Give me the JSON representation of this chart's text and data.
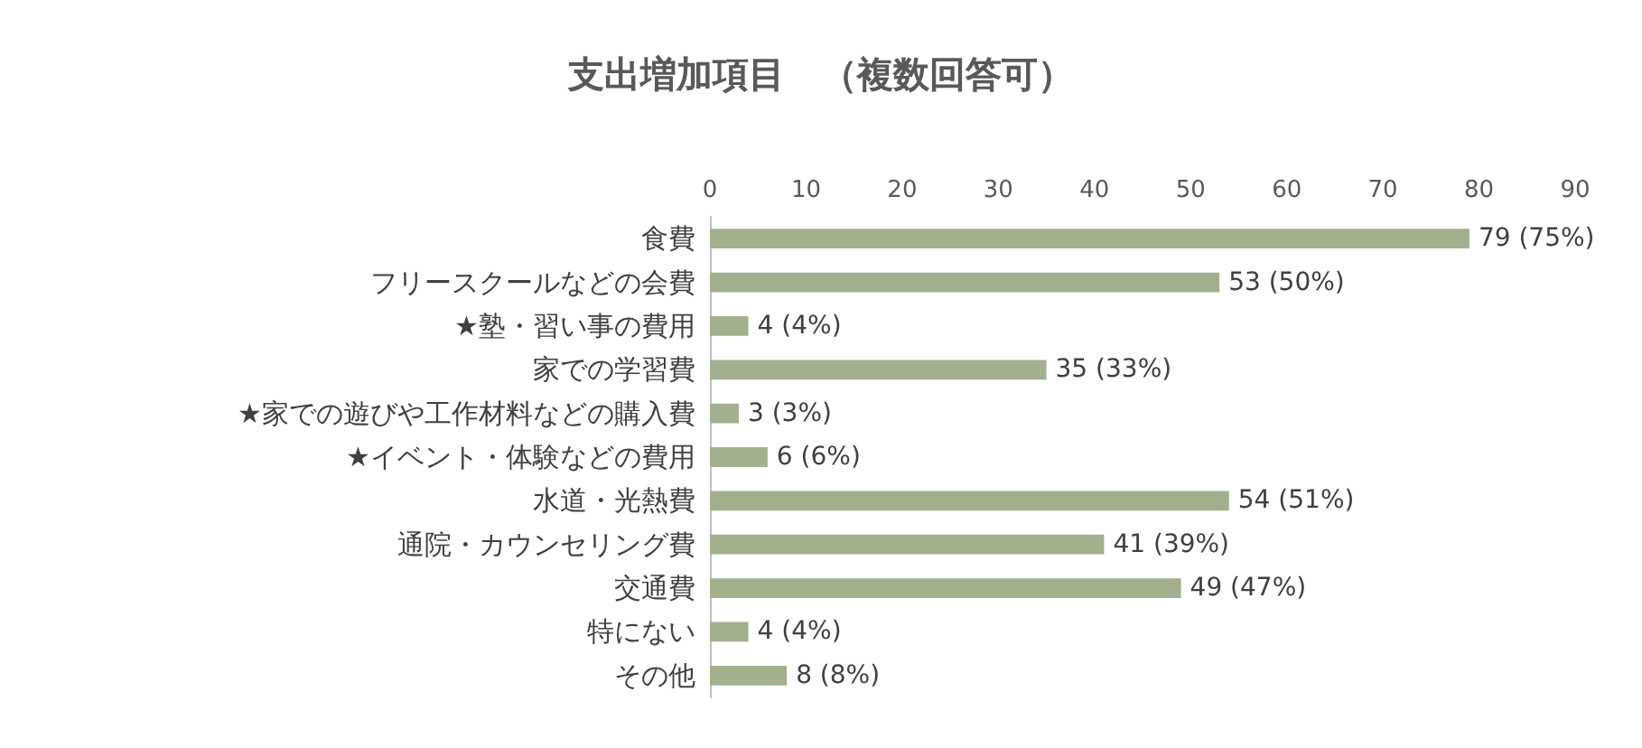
{
  "chart_data": {
    "type": "bar",
    "orientation": "horizontal",
    "title": "支出増加項目　（複数回答可）",
    "categories": [
      "食費",
      "フリースクールなどの会費",
      "★塾・習い事の費用",
      "家での学習費",
      "★家での遊びや工作材料などの購入費",
      "★イベント・体験などの費用",
      "水道・光熱費",
      "通院・カウンセリング費",
      "交通費",
      "特にない",
      "その他"
    ],
    "values": [
      79,
      53,
      4,
      35,
      3,
      6,
      54,
      41,
      49,
      4,
      8
    ],
    "value_labels": [
      "79 (75%)",
      "53 (50%)",
      "4 (4%)",
      "35 (33%)",
      "3 (3%)",
      "6 (6%)",
      "54 (51%)",
      "41 (39%)",
      "49 (47%)",
      "4 (4%)",
      "8 (8%)"
    ],
    "color": "#a2b08e",
    "xlim": [
      0,
      90
    ],
    "xticks": [
      0,
      10,
      20,
      30,
      40,
      50,
      60,
      70,
      80,
      90
    ]
  }
}
